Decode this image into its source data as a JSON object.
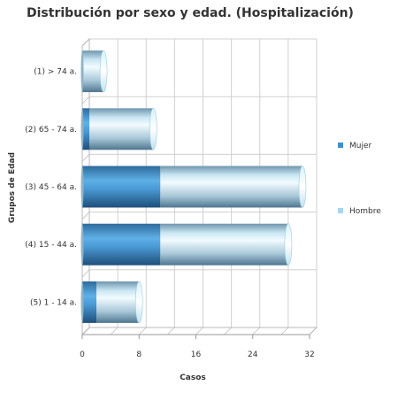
{
  "chart_data": {
    "type": "bar",
    "orientation": "horizontal",
    "stacked": true,
    "style": "3d-cylinder",
    "title": "Distribución por sexo y edad. (Hospitalización)",
    "xlabel": "Casos",
    "ylabel": "Grupos de Edad",
    "categories": [
      "(1) > 74 a.",
      "(2) 65 - 74 a.",
      "(3) 45 - 64 a.",
      "(4) 15 - 44 a.",
      "(5) 1 - 14 a."
    ],
    "series": [
      {
        "name": "Mujer",
        "values": [
          0,
          1,
          11,
          11,
          2
        ],
        "color": "#3f8fcf"
      },
      {
        "name": "Hombre",
        "values": [
          3,
          9,
          20,
          18,
          6
        ],
        "color": "#a8d4ec"
      }
    ],
    "xlim": [
      0,
      32
    ],
    "xticks": [
      "0",
      "8",
      "16",
      "24",
      "32"
    ],
    "grid": true,
    "legend_position": "right"
  }
}
